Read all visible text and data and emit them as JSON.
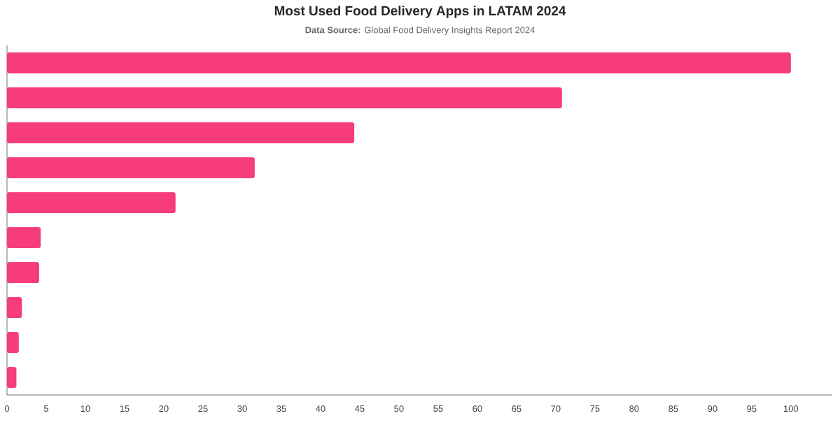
{
  "chart_data": {
    "type": "bar",
    "orientation": "horizontal",
    "title": "Most Used Food Delivery Apps in LATAM 2024",
    "subtitle": "**Data Source:** Global Food Delivery Insights Report 2024",
    "categories": [
      null,
      null,
      null,
      null,
      null,
      null,
      null,
      null,
      null,
      null
    ],
    "values": [
      100,
      70.8,
      44.3,
      31.6,
      21.5,
      4.3,
      4.1,
      1.9,
      1.5,
      1.2
    ],
    "color": "#f73c7c",
    "xlim": [
      0,
      105.2
    ],
    "xticks": [
      0,
      5,
      10,
      15,
      20,
      25,
      30,
      35,
      40,
      45,
      50,
      55,
      60,
      65,
      70,
      75,
      80,
      85,
      90,
      95,
      100
    ],
    "tick_labels": "x",
    "grid": false
  }
}
